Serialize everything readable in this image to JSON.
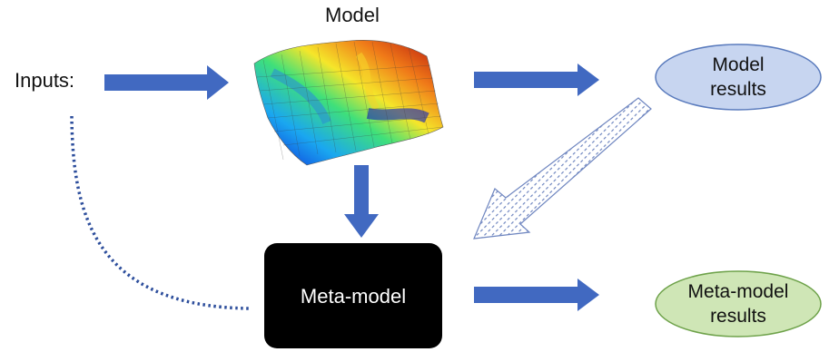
{
  "labels": {
    "model": "Model",
    "inputs": "Inputs:",
    "meta_model": "Meta-model"
  },
  "outputs": {
    "model_results": [
      "Model",
      "results"
    ],
    "meta_model_results": [
      "Meta-model",
      "results"
    ]
  },
  "colors": {
    "arrow": "#4169c1",
    "model_results_fill": "#c7d5f0",
    "model_results_stroke": "#5a7bbd",
    "meta_results_fill": "#cfe6b6",
    "meta_results_stroke": "#6ea24a",
    "meta_model_box": "#000000",
    "dotted_line": "#2d4e9c"
  },
  "icons": [
    "surface-plot-icon"
  ]
}
